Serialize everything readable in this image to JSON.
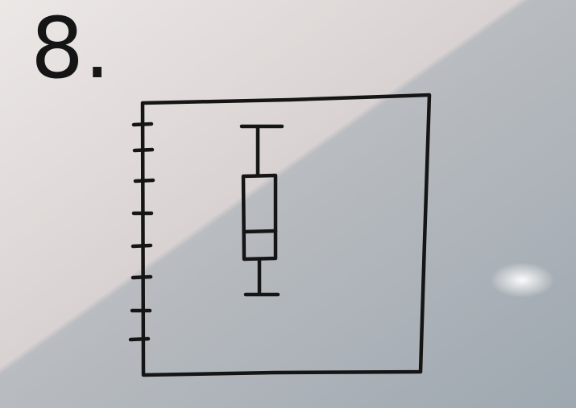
{
  "label": "8."
}
